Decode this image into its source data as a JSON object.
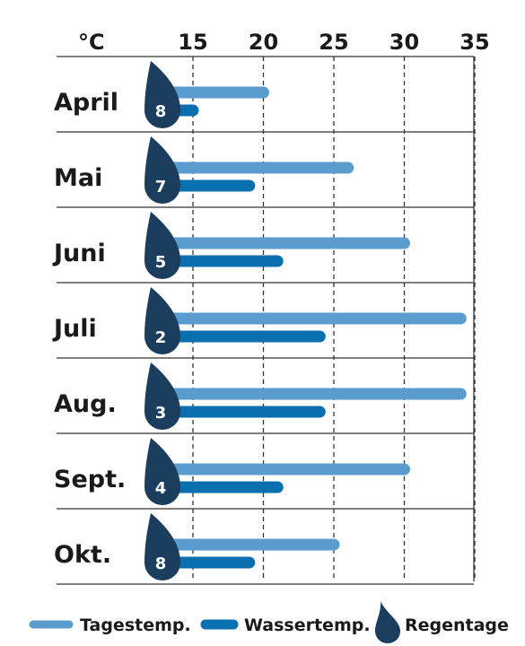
{
  "chart_data": {
    "type": "bar",
    "unit_label": "°C",
    "x_ticks": [
      15,
      20,
      25,
      30,
      35
    ],
    "xlim": [
      11.9,
      35
    ],
    "categories": [
      "April",
      "Mai",
      "Juni",
      "Juli",
      "Aug.",
      "Sept.",
      "Okt."
    ],
    "series": [
      {
        "name": "Tagestemp.",
        "values": [
          20,
          26,
          30,
          34,
          34,
          30,
          25
        ]
      },
      {
        "name": "Wassertemp.",
        "values": [
          15,
          19,
          21,
          24,
          24,
          21,
          19
        ]
      },
      {
        "name": "Regentage",
        "values": [
          8,
          7,
          5,
          2,
          3,
          4,
          8
        ]
      }
    ],
    "legend_position": "bottom",
    "grid": true,
    "colors": {
      "day_temp": "#5b9ccf",
      "water_temp": "#0a6fae",
      "rain_drop": "#1c3e5e",
      "grid": "#333333"
    }
  }
}
